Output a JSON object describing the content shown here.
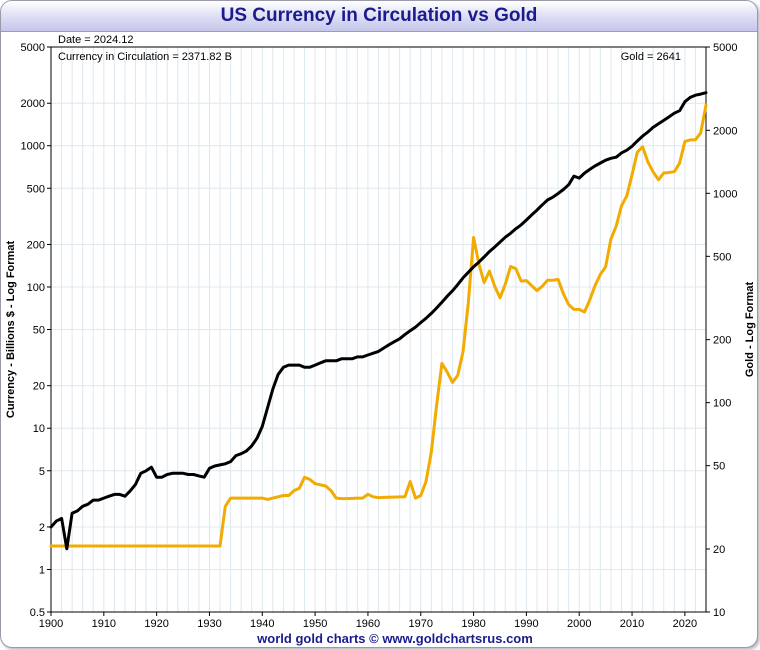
{
  "chart_data": {
    "type": "line",
    "title": "US Currency in Circulation vs Gold",
    "y_left_label": "Currency - Billions $ - Log Format",
    "y_right_label": "Gold - Log Format",
    "y_left_scale": "log",
    "y_right_scale": "log",
    "y_left_range": [
      0.5,
      5000
    ],
    "y_right_range": [
      10,
      5000
    ],
    "x_range": [
      1900,
      2024
    ],
    "x_ticks": [
      "1900",
      "1910",
      "1920",
      "1930",
      "1940",
      "1950",
      "1960",
      "1970",
      "1980",
      "1990",
      "2000",
      "2010",
      "2020"
    ],
    "y_left_ticks": [
      "5000",
      "2000",
      "1000",
      "500",
      "200",
      "100",
      "50",
      "20",
      "10",
      "5",
      "2",
      "1",
      "0.5"
    ],
    "y_right_ticks": [
      "5000",
      "2000",
      "1000",
      "500",
      "200",
      "100",
      "50",
      "20",
      "10"
    ],
    "grid": true,
    "annotations": {
      "date": "Date = 2024.12",
      "currency": "Currency in Circulation = 2371.82 B",
      "gold": "Gold = 2641"
    },
    "credit": "world gold charts © www.goldchartsrus.com",
    "colors": {
      "currency": "#000000",
      "gold": "#f2ab00",
      "title": "#1b1b8f",
      "grid": "#dde8ef"
    },
    "series": [
      {
        "axis": "left",
        "color": "#000000",
        "points": [
          [
            1900,
            2.0
          ],
          [
            1901,
            2.2
          ],
          [
            1902,
            2.3
          ],
          [
            1903,
            1.4
          ],
          [
            1904,
            2.5
          ],
          [
            1905,
            2.6
          ],
          [
            1906,
            2.8
          ],
          [
            1907,
            2.9
          ],
          [
            1908,
            3.1
          ],
          [
            1909,
            3.1
          ],
          [
            1910,
            3.2
          ],
          [
            1911,
            3.3
          ],
          [
            1912,
            3.4
          ],
          [
            1913,
            3.4
          ],
          [
            1914,
            3.3
          ],
          [
            1915,
            3.6
          ],
          [
            1916,
            4.0
          ],
          [
            1917,
            4.8
          ],
          [
            1918,
            5.0
          ],
          [
            1919,
            5.3
          ],
          [
            1920,
            4.5
          ],
          [
            1921,
            4.5
          ],
          [
            1922,
            4.7
          ],
          [
            1923,
            4.8
          ],
          [
            1924,
            4.8
          ],
          [
            1925,
            4.8
          ],
          [
            1926,
            4.7
          ],
          [
            1927,
            4.7
          ],
          [
            1928,
            4.6
          ],
          [
            1929,
            4.5
          ],
          [
            1930,
            5.2
          ],
          [
            1931,
            5.4
          ],
          [
            1932,
            5.5
          ],
          [
            1933,
            5.6
          ],
          [
            1934,
            5.8
          ],
          [
            1935,
            6.4
          ],
          [
            1936,
            6.6
          ],
          [
            1937,
            6.9
          ],
          [
            1938,
            7.5
          ],
          [
            1939,
            8.5
          ],
          [
            1940,
            10.3
          ],
          [
            1941,
            14
          ],
          [
            1942,
            19
          ],
          [
            1943,
            24
          ],
          [
            1944,
            27
          ],
          [
            1945,
            28
          ],
          [
            1946,
            28
          ],
          [
            1947,
            28
          ],
          [
            1948,
            27
          ],
          [
            1949,
            27
          ],
          [
            1950,
            28
          ],
          [
            1951,
            29
          ],
          [
            1952,
            30
          ],
          [
            1953,
            30
          ],
          [
            1954,
            30
          ],
          [
            1955,
            31
          ],
          [
            1956,
            31
          ],
          [
            1957,
            31
          ],
          [
            1958,
            32
          ],
          [
            1959,
            32
          ],
          [
            1960,
            33
          ],
          [
            1961,
            34
          ],
          [
            1962,
            35
          ],
          [
            1963,
            37
          ],
          [
            1964,
            39
          ],
          [
            1965,
            41
          ],
          [
            1966,
            43
          ],
          [
            1967,
            46
          ],
          [
            1968,
            49
          ],
          [
            1969,
            52
          ],
          [
            1970,
            56
          ],
          [
            1971,
            60
          ],
          [
            1972,
            65
          ],
          [
            1973,
            71
          ],
          [
            1974,
            78
          ],
          [
            1975,
            86
          ],
          [
            1976,
            94
          ],
          [
            1977,
            104
          ],
          [
            1978,
            116
          ],
          [
            1979,
            127
          ],
          [
            1980,
            139
          ],
          [
            1981,
            150
          ],
          [
            1982,
            163
          ],
          [
            1983,
            178
          ],
          [
            1984,
            192
          ],
          [
            1985,
            208
          ],
          [
            1986,
            225
          ],
          [
            1987,
            240
          ],
          [
            1988,
            258
          ],
          [
            1989,
            275
          ],
          [
            1990,
            298
          ],
          [
            1991,
            324
          ],
          [
            1992,
            350
          ],
          [
            1993,
            382
          ],
          [
            1994,
            413
          ],
          [
            1995,
            432
          ],
          [
            1996,
            459
          ],
          [
            1997,
            490
          ],
          [
            1998,
            530
          ],
          [
            1999,
            610
          ],
          [
            2000,
            590
          ],
          [
            2001,
            640
          ],
          [
            2002,
            680
          ],
          [
            2003,
            720
          ],
          [
            2004,
            755
          ],
          [
            2005,
            790
          ],
          [
            2006,
            815
          ],
          [
            2007,
            830
          ],
          [
            2008,
            890
          ],
          [
            2009,
            930
          ],
          [
            2010,
            990
          ],
          [
            2011,
            1080
          ],
          [
            2012,
            1170
          ],
          [
            2013,
            1250
          ],
          [
            2014,
            1350
          ],
          [
            2015,
            1430
          ],
          [
            2016,
            1510
          ],
          [
            2017,
            1600
          ],
          [
            2018,
            1700
          ],
          [
            2019,
            1770
          ],
          [
            2020,
            2050
          ],
          [
            2021,
            2200
          ],
          [
            2022,
            2280
          ],
          [
            2023,
            2320
          ],
          [
            2024,
            2372
          ]
        ]
      },
      {
        "axis": "right",
        "color": "#f2ab00",
        "points": [
          [
            1900,
            20.67
          ],
          [
            1932,
            20.67
          ],
          [
            1933,
            32
          ],
          [
            1934,
            35
          ],
          [
            1940,
            35
          ],
          [
            1941,
            34.5
          ],
          [
            1942,
            35
          ],
          [
            1943,
            35.5
          ],
          [
            1944,
            36
          ],
          [
            1945,
            36
          ],
          [
            1946,
            38
          ],
          [
            1947,
            39
          ],
          [
            1948,
            44
          ],
          [
            1949,
            43
          ],
          [
            1950,
            41
          ],
          [
            1951,
            40.5
          ],
          [
            1952,
            40
          ],
          [
            1953,
            38
          ],
          [
            1954,
            35
          ],
          [
            1955,
            34.8
          ],
          [
            1956,
            34.8
          ],
          [
            1958,
            35
          ],
          [
            1959,
            35
          ],
          [
            1960,
            36.5
          ],
          [
            1961,
            35.5
          ],
          [
            1962,
            35.2
          ],
          [
            1967,
            35.5
          ],
          [
            1968,
            42
          ],
          [
            1969,
            35
          ],
          [
            1970,
            36
          ],
          [
            1971,
            42
          ],
          [
            1972,
            58
          ],
          [
            1973,
            97
          ],
          [
            1974,
            154
          ],
          [
            1975,
            140
          ],
          [
            1976,
            125
          ],
          [
            1977,
            135
          ],
          [
            1978,
            175
          ],
          [
            1979,
            300
          ],
          [
            1980,
            615
          ],
          [
            1981,
            460
          ],
          [
            1982,
            375
          ],
          [
            1983,
            425
          ],
          [
            1984,
            360
          ],
          [
            1985,
            317
          ],
          [
            1986,
            368
          ],
          [
            1987,
            447
          ],
          [
            1988,
            437
          ],
          [
            1989,
            381
          ],
          [
            1990,
            383
          ],
          [
            1991,
            362
          ],
          [
            1992,
            343
          ],
          [
            1993,
            360
          ],
          [
            1994,
            384
          ],
          [
            1995,
            384
          ],
          [
            1996,
            388
          ],
          [
            1997,
            331
          ],
          [
            1998,
            294
          ],
          [
            1999,
            279
          ],
          [
            2000,
            279
          ],
          [
            2001,
            271
          ],
          [
            2002,
            310
          ],
          [
            2003,
            363
          ],
          [
            2004,
            410
          ],
          [
            2005,
            445
          ],
          [
            2006,
            604
          ],
          [
            2007,
            697
          ],
          [
            2008,
            872
          ],
          [
            2009,
            972
          ],
          [
            2010,
            1225
          ],
          [
            2011,
            1572
          ],
          [
            2012,
            1669
          ],
          [
            2013,
            1411
          ],
          [
            2014,
            1266
          ],
          [
            2015,
            1160
          ],
          [
            2016,
            1251
          ],
          [
            2017,
            1257
          ],
          [
            2018,
            1268
          ],
          [
            2019,
            1393
          ],
          [
            2020,
            1770
          ],
          [
            2021,
            1800
          ],
          [
            2022,
            1802
          ],
          [
            2023,
            1943
          ],
          [
            2024,
            2641
          ]
        ]
      }
    ]
  }
}
